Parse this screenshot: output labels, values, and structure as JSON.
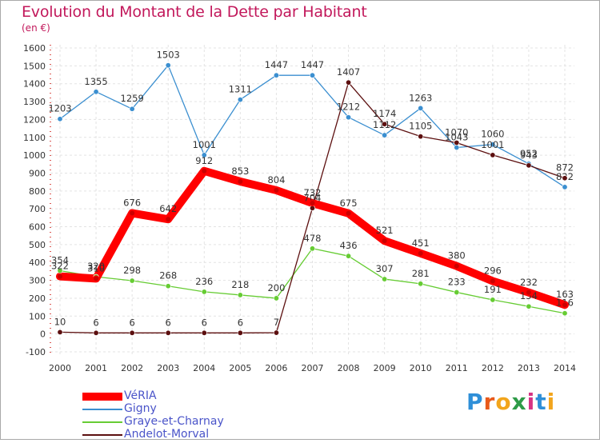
{
  "header": {
    "title": "Evolution du Montant de la Dette par Habitant",
    "subtitle": "(en €)"
  },
  "logo": {
    "text": "Proxiti",
    "colors": [
      "#2f8fd8",
      "#e8591a",
      "#f2a51c",
      "#2e9b48",
      "#d63384",
      "#2f8fd8",
      "#f2a51c"
    ]
  },
  "chart_data": {
    "type": "line",
    "categories": [
      "2000",
      "2001",
      "2002",
      "2003",
      "2004",
      "2005",
      "2006",
      "2007",
      "2008",
      "2009",
      "2010",
      "2011",
      "2012",
      "2013",
      "2014"
    ],
    "ylim": [
      -100,
      1600
    ],
    "yticks": [
      -100,
      0,
      100,
      200,
      300,
      400,
      500,
      600,
      700,
      800,
      900,
      1000,
      1100,
      1200,
      1300,
      1400,
      1500,
      1600
    ],
    "grid": true,
    "legend_position": "bottom-left",
    "series": [
      {
        "name": "VéRIA",
        "color": "#ff0000",
        "values": [
          322,
          310,
          676,
          642,
          912,
          853,
          804,
          732,
          675,
          521,
          451,
          380,
          296,
          232,
          163
        ]
      },
      {
        "name": "Gigny",
        "color": "#3b8fd0",
        "values": [
          1203,
          1355,
          1259,
          1503,
          1001,
          1311,
          1447,
          1447,
          1212,
          1112,
          1263,
          1043,
          1060,
          952,
          822
        ]
      },
      {
        "name": "Graye-et-Charnay",
        "color": "#66cc33",
        "values": [
          354,
          320,
          298,
          268,
          236,
          218,
          200,
          478,
          436,
          307,
          281,
          233,
          191,
          154,
          116
        ]
      },
      {
        "name": "Andelot-Morval",
        "color": "#5c0f0f",
        "values": [
          10,
          6,
          6,
          6,
          6,
          6,
          7,
          704,
          1407,
          1174,
          1105,
          1070,
          1001,
          943,
          872
        ]
      }
    ]
  }
}
